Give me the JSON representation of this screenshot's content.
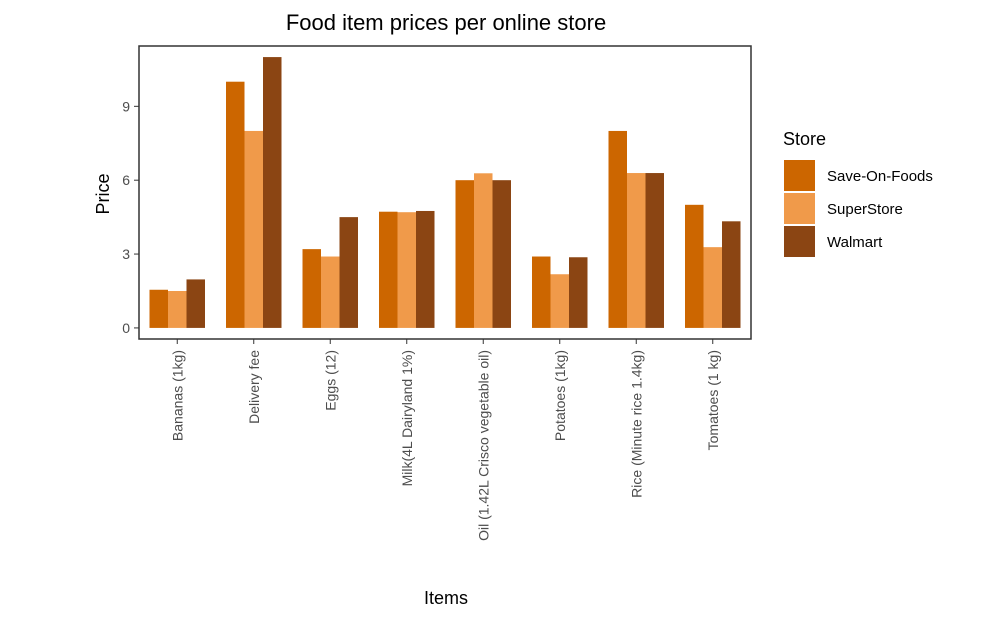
{
  "chart_data": {
    "type": "bar",
    "title": "Food item prices per online store",
    "xlabel": "Items",
    "ylabel": "Price",
    "ylim": [
      -0.45,
      11.45
    ],
    "yticks": [
      0,
      3,
      6,
      9
    ],
    "grid": false,
    "legend_placement": "right",
    "legend_title": "Store",
    "categories": [
      "Bananas (1kg)",
      "Delivery fee",
      "Eggs (12)",
      "Milk(4L Dairyland 1%)",
      "Oil (1.42L Crisco vegetable oil)",
      "Potatoes (1kg)",
      "Rice (Minute rice 1.4kg)",
      "Tomatoes (1 kg)"
    ],
    "series": [
      {
        "name": "Save-On-Foods",
        "color": "#cc6600",
        "values": [
          1.55,
          10.0,
          3.2,
          4.72,
          6.0,
          2.9,
          8.0,
          5.0
        ]
      },
      {
        "name": "SuperStore",
        "color": "#f09a4a",
        "values": [
          1.5,
          8.0,
          2.9,
          4.7,
          6.28,
          2.18,
          6.29,
          3.28
        ]
      },
      {
        "name": "Walmart",
        "color": "#8b4513",
        "values": [
          1.97,
          11.0,
          4.5,
          4.75,
          6.0,
          2.87,
          6.29,
          4.33
        ]
      }
    ]
  }
}
